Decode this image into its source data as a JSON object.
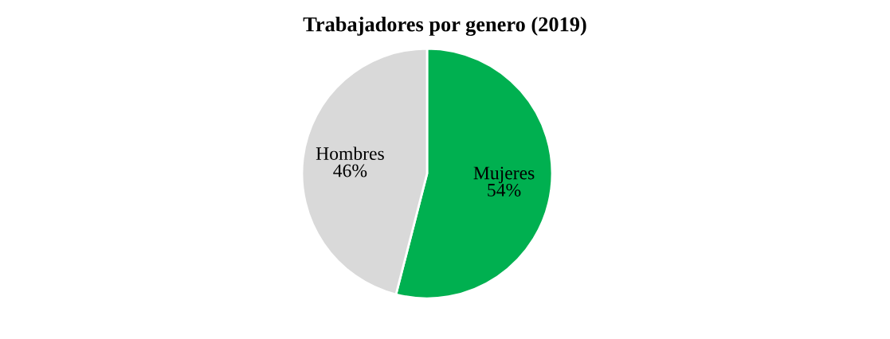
{
  "chart_data": {
    "type": "pie",
    "title": "Trabajadores por genero (2019)",
    "categories": [
      "Mujeres",
      "Hombres"
    ],
    "values": [
      54,
      46
    ],
    "colors": [
      "#00b050",
      "#d9d9d9"
    ],
    "value_labels": [
      "54%",
      "46%"
    ]
  }
}
